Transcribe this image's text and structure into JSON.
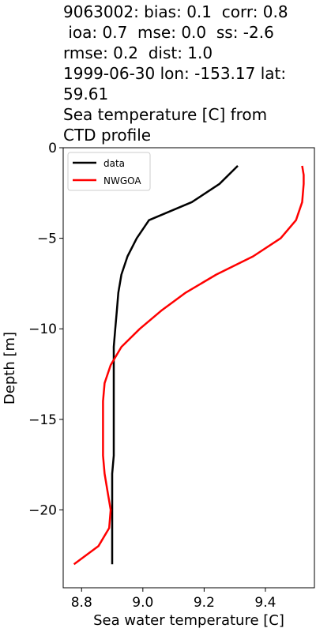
{
  "title_lines": [
    "9063002: bias: 0.1  corr: 0.8",
    " ioa: 0.7  mse: 0.0  ss: -2.6",
    "rmse: 0.2  dist: 1.0",
    "1999-06-30 lon: -153.17 lat:",
    "59.61",
    "Sea temperature [C] from",
    "CTD profile"
  ],
  "chart_data": {
    "type": "line",
    "title": "9063002: bias: 0.1  corr: 0.8  ioa: 0.7  mse: 0.0  ss: -2.6 rmse: 0.2  dist: 1.0 1999-06-30 lon: -153.17 lat: 59.61 Sea temperature [C] from CTD profile",
    "xlabel": "Sea water temperature [C]",
    "ylabel": "Depth [m]",
    "xlim": [
      8.74,
      9.56
    ],
    "ylim": [
      -24.3,
      0
    ],
    "xticks": [
      8.8,
      9.0,
      9.2,
      9.4
    ],
    "xtick_labels": [
      "8.8",
      "9.0",
      "9.2",
      "9.4"
    ],
    "yticks": [
      0,
      -5,
      -10,
      -15,
      -20
    ],
    "ytick_labels": [
      "0",
      "−5",
      "−10",
      "−15",
      "−20"
    ],
    "grid": false,
    "legend": "upper-left",
    "series": [
      {
        "name": "data",
        "color": "#000000",
        "x": [
          9.31,
          9.25,
          9.16,
          9.02,
          8.98,
          8.95,
          8.93,
          8.92,
          8.915,
          8.91,
          8.905,
          8.905,
          8.905,
          8.905,
          8.905,
          8.905,
          8.905,
          8.9,
          8.9,
          8.9,
          8.9,
          8.9,
          8.9
        ],
        "y": [
          -1,
          -2,
          -3,
          -4,
          -5,
          -6,
          -7,
          -8,
          -9,
          -10,
          -11,
          -12,
          -13,
          -14,
          -15,
          -16,
          -17,
          -18,
          -19,
          -20,
          -21,
          -22,
          -23
        ]
      },
      {
        "name": "NWGOA",
        "color": "#ff0000",
        "x": [
          9.52,
          9.525,
          9.525,
          9.52,
          9.5,
          9.45,
          9.36,
          9.24,
          9.14,
          9.06,
          8.99,
          8.93,
          8.895,
          8.875,
          8.87,
          8.87,
          8.87,
          8.87,
          8.875,
          8.885,
          8.895,
          8.89,
          8.855,
          8.775
        ],
        "y": [
          -1,
          -1.5,
          -2,
          -3,
          -4,
          -5,
          -6,
          -7,
          -8,
          -9,
          -10,
          -11,
          -12,
          -13,
          -14,
          -15,
          -16,
          -17,
          -18,
          -19,
          -20,
          -21,
          -22,
          -23
        ]
      }
    ]
  }
}
